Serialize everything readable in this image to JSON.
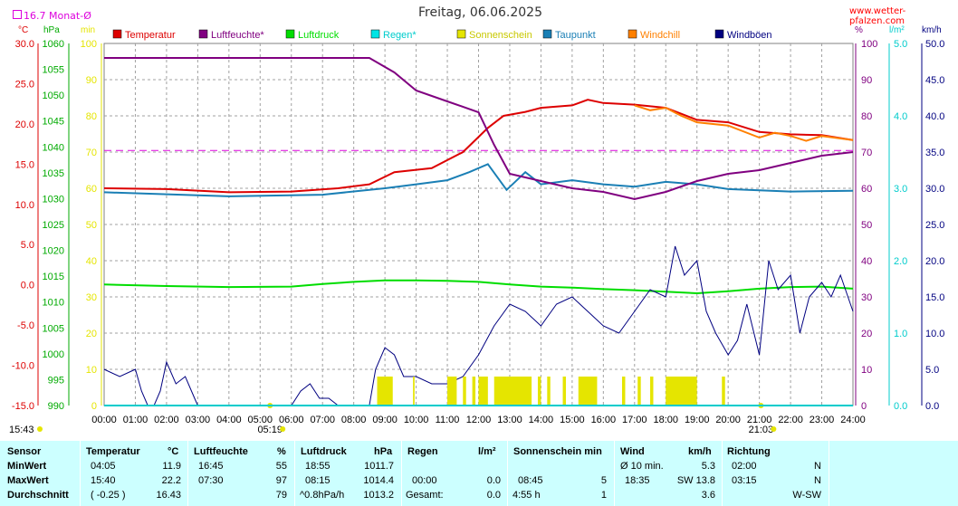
{
  "header": {
    "title": "Freitag, 06.06.2025",
    "site": "www.wetter-pfalzen.com",
    "monthly_avg": "16.7 Monat-Ø"
  },
  "axes": {
    "temp_unit": "°C",
    "pressure_unit": "hPa",
    "sun_unit": "min",
    "humidity_unit": "%",
    "rain_unit": "l/m²",
    "wind_unit": "km/h",
    "temp_ticks": [
      "30.0",
      "25.0",
      "20.0",
      "15.0",
      "10.0",
      "5.0",
      "0.0",
      "-5.0",
      "-10.0",
      "-15.0"
    ],
    "pressure_ticks": [
      "1060",
      "1055",
      "1050",
      "1045",
      "1040",
      "1035",
      "1030",
      "1025",
      "1020",
      "1015",
      "1010",
      "1005",
      "1000",
      "995",
      "990"
    ],
    "sun_ticks": [
      "100",
      "90",
      "80",
      "70",
      "60",
      "50",
      "40",
      "30",
      "20",
      "10",
      "0"
    ],
    "humidity_ticks": [
      "100",
      "90",
      "80",
      "70",
      "60",
      "50",
      "40",
      "30",
      "20",
      "10",
      "0"
    ],
    "rain_ticks": [
      "5.0",
      "4.0",
      "3.0",
      "2.0",
      "1.0",
      "0.0"
    ],
    "wind_ticks": [
      "50.0",
      "45.0",
      "40.0",
      "35.0",
      "30.0",
      "25.0",
      "20.0",
      "15.0",
      "10.0",
      "5.0",
      "0.0"
    ],
    "time_ticks": [
      "00:00",
      "01:00",
      "02:00",
      "03:00",
      "04:00",
      "05:00",
      "06:00",
      "07:00",
      "08:00",
      "09:00",
      "10:00",
      "11:00",
      "12:00",
      "13:00",
      "14:00",
      "15:00",
      "16:00",
      "17:00",
      "18:00",
      "19:00",
      "20:00",
      "21:00",
      "22:00",
      "23:00",
      "24:00"
    ],
    "sunrise": "05:19",
    "sunset": "21:03",
    "now": "15:43"
  },
  "legend": [
    {
      "label": "Temperatur",
      "color": "#dd0000"
    },
    {
      "label": "Luftfeuchte*",
      "color": "#800080"
    },
    {
      "label": "Luftdruck",
      "color": "#00dd00"
    },
    {
      "label": "Regen*",
      "color": "#00e5e5"
    },
    {
      "label": "Sonnenschein",
      "color": "#e5e500"
    },
    {
      "label": "Taupunkt",
      "color": "#1a7fb5"
    },
    {
      "label": "Windchill",
      "color": "#ff8000"
    },
    {
      "label": "Windböen",
      "color": "#000080"
    }
  ],
  "colors": {
    "temp_axis": "#dd0000",
    "pressure_axis": "#00aa00",
    "sun_axis": "#e5e500",
    "humidity_axis": "#800080",
    "rain_axis": "#00cccc",
    "wind_axis": "#000080",
    "month_avg_line": "#dd00dd",
    "grid": "#a0a0a0",
    "stats_bg": "#ccffff"
  },
  "chart_data": {
    "type": "line",
    "x_unit": "hours",
    "month_avg_temp": 16.7,
    "series": [
      {
        "name": "Temperatur",
        "axis": "temp",
        "points": [
          [
            0,
            12.0
          ],
          [
            2,
            11.9
          ],
          [
            4,
            11.5
          ],
          [
            6,
            11.6
          ],
          [
            7.5,
            12.0
          ],
          [
            8.5,
            12.5
          ],
          [
            9.3,
            14.0
          ],
          [
            10.5,
            14.5
          ],
          [
            11.5,
            16.5
          ],
          [
            12.3,
            19.5
          ],
          [
            12.8,
            21.0
          ],
          [
            13.5,
            21.5
          ],
          [
            14,
            22.0
          ],
          [
            15,
            22.3
          ],
          [
            15.5,
            23.0
          ],
          [
            16,
            22.6
          ],
          [
            17,
            22.4
          ],
          [
            18,
            22.0
          ],
          [
            19,
            20.5
          ],
          [
            20,
            20.2
          ],
          [
            21,
            19.0
          ],
          [
            22,
            18.7
          ],
          [
            23,
            18.6
          ],
          [
            24,
            18.0
          ]
        ]
      },
      {
        "name": "Windchill",
        "axis": "temp",
        "points": [
          [
            17,
            22.3
          ],
          [
            17.5,
            21.7
          ],
          [
            18,
            22.0
          ],
          [
            18.5,
            21.0
          ],
          [
            19,
            20.2
          ],
          [
            20,
            19.8
          ],
          [
            21,
            18.3
          ],
          [
            21.5,
            18.9
          ],
          [
            22,
            18.5
          ],
          [
            22.5,
            17.9
          ],
          [
            23,
            18.5
          ],
          [
            24,
            18.0
          ]
        ]
      },
      {
        "name": "Taupunkt",
        "axis": "temp",
        "points": [
          [
            0,
            11.5
          ],
          [
            4,
            11.0
          ],
          [
            7,
            11.2
          ],
          [
            9,
            12.0
          ],
          [
            10,
            12.5
          ],
          [
            11,
            13.0
          ],
          [
            11.7,
            14.0
          ],
          [
            12.3,
            15.0
          ],
          [
            12.9,
            11.8
          ],
          [
            13.5,
            14.0
          ],
          [
            14,
            12.5
          ],
          [
            15,
            13.0
          ],
          [
            16,
            12.5
          ],
          [
            17,
            12.2
          ],
          [
            18,
            12.8
          ],
          [
            19,
            12.5
          ],
          [
            20,
            11.9
          ],
          [
            22,
            11.6
          ],
          [
            24,
            11.7
          ]
        ]
      },
      {
        "name": "Luftfeuchte*",
        "axis": "humidity",
        "points": [
          [
            0,
            96
          ],
          [
            8.5,
            96
          ],
          [
            9.3,
            92
          ],
          [
            10,
            87
          ],
          [
            11,
            84
          ],
          [
            12,
            81
          ],
          [
            12.5,
            72
          ],
          [
            13,
            64
          ],
          [
            14,
            62
          ],
          [
            15,
            60
          ],
          [
            16,
            59
          ],
          [
            17,
            57
          ],
          [
            18,
            59
          ],
          [
            19,
            62
          ],
          [
            20,
            64
          ],
          [
            21,
            65
          ],
          [
            22,
            67
          ],
          [
            23,
            69
          ],
          [
            24,
            70
          ]
        ]
      },
      {
        "name": "Luftdruck",
        "axis": "pressure",
        "points": [
          [
            0,
            1013.4
          ],
          [
            2,
            1013.1
          ],
          [
            4,
            1012.9
          ],
          [
            6,
            1013.0
          ],
          [
            7,
            1013.5
          ],
          [
            8,
            1013.9
          ],
          [
            9,
            1014.2
          ],
          [
            10,
            1014.2
          ],
          [
            11,
            1014.1
          ],
          [
            12,
            1013.9
          ],
          [
            13,
            1013.4
          ],
          [
            14,
            1013.0
          ],
          [
            15,
            1012.8
          ],
          [
            16,
            1012.5
          ],
          [
            17,
            1012.3
          ],
          [
            18,
            1012.0
          ],
          [
            19,
            1011.7
          ],
          [
            20,
            1012.1
          ],
          [
            21,
            1012.6
          ],
          [
            22,
            1012.9
          ],
          [
            23,
            1013.0
          ],
          [
            24,
            1012.6
          ]
        ]
      },
      {
        "name": "Windböen",
        "axis": "wind",
        "points": [
          [
            0,
            5
          ],
          [
            0.5,
            4
          ],
          [
            1,
            5
          ],
          [
            1.2,
            2
          ],
          [
            1.4,
            0
          ],
          [
            1.6,
            0
          ],
          [
            1.8,
            2
          ],
          [
            2,
            6
          ],
          [
            2.3,
            3
          ],
          [
            2.6,
            4
          ],
          [
            2.9,
            1
          ],
          [
            3,
            0
          ],
          [
            6,
            0
          ],
          [
            6.3,
            2
          ],
          [
            6.6,
            3
          ],
          [
            6.9,
            1
          ],
          [
            7.2,
            1
          ],
          [
            7.5,
            0
          ],
          [
            8.5,
            0
          ],
          [
            8.7,
            5
          ],
          [
            9,
            8
          ],
          [
            9.3,
            7
          ],
          [
            9.6,
            4
          ],
          [
            10,
            4
          ],
          [
            10.5,
            3
          ],
          [
            11,
            3
          ],
          [
            11.5,
            4
          ],
          [
            12,
            7
          ],
          [
            12.5,
            11
          ],
          [
            13,
            14
          ],
          [
            13.5,
            13
          ],
          [
            14,
            11
          ],
          [
            14.5,
            14
          ],
          [
            15,
            15
          ],
          [
            15.5,
            13
          ],
          [
            16,
            11
          ],
          [
            16.5,
            10
          ],
          [
            17,
            13
          ],
          [
            17.5,
            16
          ],
          [
            18,
            15
          ],
          [
            18.3,
            22
          ],
          [
            18.6,
            18
          ],
          [
            19,
            20
          ],
          [
            19.3,
            13
          ],
          [
            19.6,
            10
          ],
          [
            20,
            7
          ],
          [
            20.3,
            9
          ],
          [
            20.6,
            14
          ],
          [
            21,
            7
          ],
          [
            21.3,
            20
          ],
          [
            21.6,
            16
          ],
          [
            22,
            18
          ],
          [
            22.3,
            10
          ],
          [
            22.6,
            15
          ],
          [
            23,
            17
          ],
          [
            23.3,
            15
          ],
          [
            23.6,
            18
          ],
          [
            24,
            13
          ]
        ]
      },
      {
        "name": "Sonnenschein",
        "axis": "sun",
        "type": "bar",
        "intervals": [
          [
            8.75,
            9.25
          ],
          [
            9.9,
            9.95
          ],
          [
            11.0,
            11.3
          ],
          [
            11.5,
            11.6
          ],
          [
            11.8,
            11.9
          ],
          [
            12.0,
            12.3
          ],
          [
            12.5,
            13.7
          ],
          [
            13.9,
            14.0
          ],
          [
            14.2,
            14.3
          ],
          [
            14.7,
            14.8
          ],
          [
            15.2,
            15.8
          ],
          [
            16.6,
            16.7
          ],
          [
            17.1,
            17.2
          ],
          [
            17.5,
            17.6
          ],
          [
            18.0,
            19.0
          ],
          [
            19.8,
            19.9
          ]
        ]
      }
    ]
  },
  "stats": {
    "headers": {
      "sensor": "Sensor",
      "temp": "Temperatur",
      "temp_unit": "°C",
      "humid": "Luftfeuchte",
      "humid_unit": "%",
      "press": "Luftdruck",
      "press_unit": "hPa",
      "rain": "Regen",
      "rain_unit": "l/m²",
      "sun": "Sonnenschein min",
      "wind": "Wind",
      "wind_unit": "km/h",
      "dir": "Richtung"
    },
    "rows": [
      {
        "label": "MinWert",
        "temp_time": "04:05",
        "temp_val": "11.9",
        "humid_time": "16:45",
        "humid_val": "55",
        "press_time": "18:55",
        "press_val": "1011.7",
        "rain_time": "",
        "rain_val": "",
        "sun_time": "",
        "sun_val": "",
        "wind_time": "Ø 10 min.",
        "wind_val": "5.3",
        "dir_time": "02:00",
        "dir_val": "N"
      },
      {
        "label": "MaxWert",
        "temp_time": "15:40",
        "temp_val": "22.2",
        "humid_time": "07:30",
        "humid_val": "97",
        "press_time": "08:15",
        "press_val": "1014.4",
        "rain_time": "00:00",
        "rain_val": "0.0",
        "sun_time": "08:45",
        "sun_val": "5",
        "wind_time": "18:35",
        "wind_val": "SW 13.8",
        "dir_time": "03:15",
        "dir_val": "N"
      },
      {
        "label": "Durchschnitt",
        "temp_time": "( -0.25 )",
        "temp_val": "16.43",
        "humid_time": "",
        "humid_val": "79",
        "press_time": "^0.8hPa/h",
        "press_val": "1013.2",
        "rain_time": "Gesamt:",
        "rain_val": "0.0",
        "sun_time": "4:55 h",
        "sun_val": "1",
        "wind_time": "",
        "wind_val": "3.6",
        "dir_time": "",
        "dir_val": "W-SW"
      }
    ]
  }
}
